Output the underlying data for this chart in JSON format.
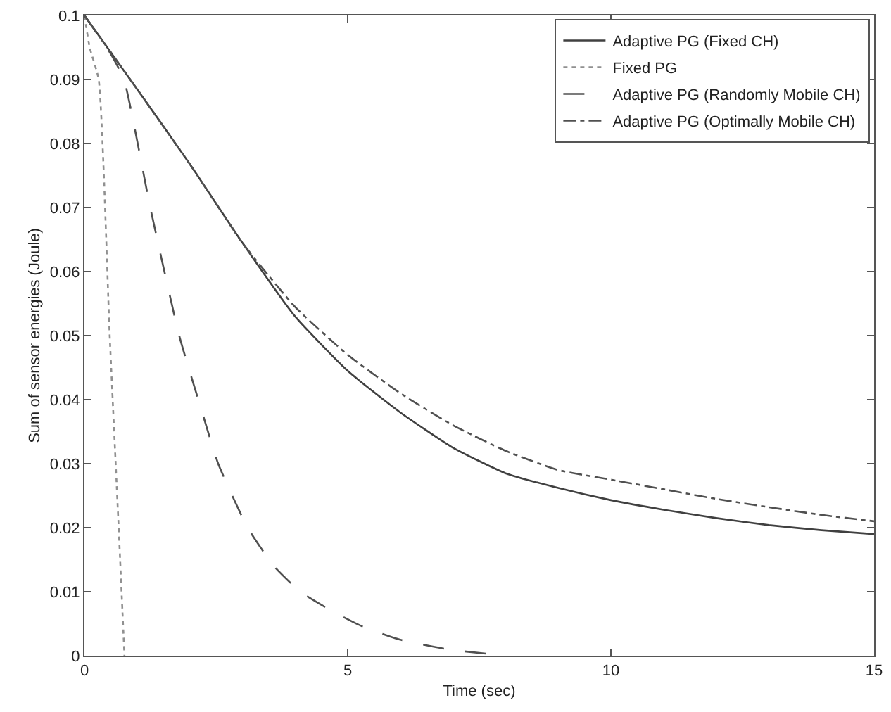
{
  "chart_data": {
    "type": "line",
    "xlabel": "Time (sec)",
    "ylabel": "Sum of sensor energies (Joule)",
    "xlim": [
      0,
      15
    ],
    "xticks": [
      0,
      5,
      10,
      15
    ],
    "ylim": [
      0,
      0.1
    ],
    "yticks": [
      0,
      0.01,
      0.02,
      0.03,
      0.04,
      0.05,
      0.06,
      0.07,
      0.08,
      0.09,
      0.1
    ],
    "legend": "top right",
    "marker": "none",
    "series": [
      {
        "name": "Adaptive PG (Fixed CH)",
        "color": "#404040",
        "line_style": "solid",
        "x": [
          0,
          1,
          2,
          3,
          4,
          5,
          6,
          7,
          8,
          9,
          10,
          11,
          12,
          13,
          14,
          15
        ],
        "values": [
          0.1,
          0.0885,
          0.0768,
          0.0645,
          0.053,
          0.0445,
          0.038,
          0.0325,
          0.0285,
          0.0262,
          0.0243,
          0.0228,
          0.0215,
          0.0204,
          0.0196,
          0.019
        ]
      },
      {
        "name": "Fixed PG",
        "color": "#909090",
        "line_style": "dotted",
        "x": [
          0,
          0.1,
          0.27,
          0.48,
          0.65,
          0.76
        ],
        "values": [
          0.1,
          0.095,
          0.09,
          0.05,
          0.02,
          0
        ]
      },
      {
        "name": "Adaptive PG (Randomly Mobile CH)",
        "color": "#505050",
        "line_style": "dashed",
        "x": [
          0,
          0.5,
          0.75,
          1.25,
          1.8,
          2.2,
          2.54,
          3.1,
          3.6,
          4.1,
          4.7,
          5.3,
          6,
          6.9,
          8
        ],
        "values": [
          0.1,
          0.094,
          0.09,
          0.07,
          0.05,
          0.039,
          0.03,
          0.02,
          0.014,
          0.01,
          0.007,
          0.0045,
          0.0025,
          0.001,
          0
        ]
      },
      {
        "name": "Adaptive PG (Optimally Mobile CH)",
        "color": "#505050",
        "line_style": "dashdot",
        "x": [
          0,
          1,
          2,
          3,
          4,
          5,
          6,
          7,
          8,
          9,
          10,
          11,
          12,
          13,
          14,
          15
        ],
        "values": [
          0.1,
          0.0885,
          0.0768,
          0.0645,
          0.0545,
          0.047,
          0.041,
          0.036,
          0.032,
          0.029,
          0.0275,
          0.026,
          0.0245,
          0.0232,
          0.022,
          0.021
        ]
      }
    ]
  }
}
